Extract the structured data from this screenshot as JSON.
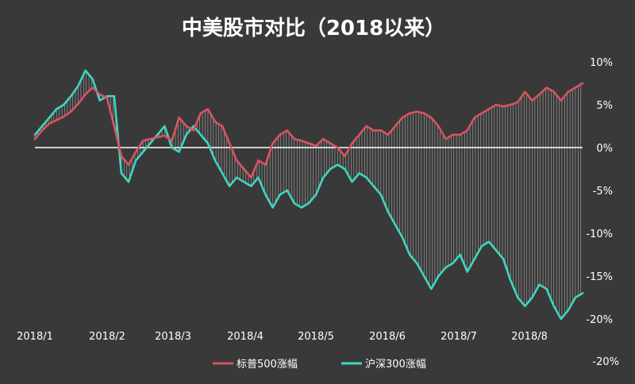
{
  "colors": {
    "background": "#3a393a",
    "sp500": "#d9545f",
    "csi300": "#3fd6c0",
    "gap_lines": "#cfcfcf",
    "axis": "#ffffff"
  },
  "chart_data": {
    "type": "line",
    "title": "中美股市对比（2018以来）",
    "x_ticks": [
      "2018/1",
      "2018/2",
      "2018/3",
      "2018/4",
      "2018/5",
      "2018/6",
      "2018/7",
      "2018/8"
    ],
    "y_ticks": [
      "10%",
      "5%",
      "0%",
      "-5%",
      "-10%",
      "-15%",
      "-20%"
    ],
    "y_tick_values": [
      10,
      5,
      0,
      -5,
      -10,
      -15,
      -20
    ],
    "ylim": [
      -20,
      10
    ],
    "xlim": [
      0,
      152
    ],
    "extra_label": "-20%",
    "legend_position": "bottom",
    "legend": [
      "标普500涨幅",
      "沪深300涨幅"
    ],
    "series": [
      {
        "name": "标普500涨幅",
        "color": "#d9545f",
        "x": [
          0,
          2,
          4,
          6,
          8,
          10,
          12,
          14,
          16,
          18,
          20,
          22,
          24,
          26,
          28,
          30,
          32,
          34,
          36,
          38,
          40,
          42,
          44,
          46,
          48,
          50,
          52,
          54,
          56,
          58,
          60,
          62,
          64,
          66,
          68,
          70,
          72,
          74,
          76,
          78,
          80,
          82,
          84,
          86,
          88,
          90,
          92,
          94,
          96,
          98,
          100,
          102,
          104,
          106,
          108,
          110,
          112,
          114,
          116,
          118,
          120,
          122,
          124,
          126,
          128,
          130,
          132,
          134,
          136,
          138,
          140,
          142,
          144,
          146,
          148,
          150,
          152
        ],
        "y": [
          1.0,
          2.0,
          2.8,
          3.2,
          3.6,
          4.2,
          5.1,
          6.2,
          7.0,
          6.2,
          5.8,
          2.5,
          -1.0,
          -2.0,
          -0.5,
          0.8,
          1.0,
          1.2,
          1.4,
          0.8,
          3.5,
          2.5,
          2.0,
          4.0,
          4.5,
          3.0,
          2.5,
          0.5,
          -1.5,
          -2.5,
          -3.5,
          -1.5,
          -2.0,
          0.5,
          1.5,
          2.0,
          1.0,
          0.8,
          0.5,
          0.2,
          1.0,
          0.5,
          0.0,
          -1.0,
          0.5,
          1.5,
          2.5,
          2.0,
          2.0,
          1.5,
          2.5,
          3.5,
          4.0,
          4.2,
          4.0,
          3.5,
          2.5,
          1.0,
          1.5,
          1.5,
          2.0,
          3.5,
          4.0,
          4.5,
          5.0,
          4.8,
          5.0,
          5.3,
          6.5,
          5.5,
          6.2,
          7.0,
          6.5,
          5.5,
          6.5,
          7.0,
          7.5
        ]
      },
      {
        "name": "沪深300涨幅",
        "color": "#3fd6c0",
        "x": [
          0,
          2,
          4,
          6,
          8,
          10,
          12,
          14,
          16,
          18,
          20,
          22,
          24,
          26,
          28,
          30,
          32,
          34,
          36,
          38,
          40,
          42,
          44,
          46,
          48,
          50,
          52,
          54,
          56,
          58,
          60,
          62,
          64,
          66,
          68,
          70,
          72,
          74,
          76,
          78,
          80,
          82,
          84,
          86,
          88,
          90,
          92,
          94,
          96,
          98,
          100,
          102,
          104,
          106,
          108,
          110,
          112,
          114,
          116,
          118,
          120,
          122,
          124,
          126,
          128,
          130,
          132,
          134,
          136,
          138,
          140,
          142,
          144,
          146,
          148,
          150,
          152
        ],
        "y": [
          1.5,
          2.5,
          3.5,
          4.5,
          5.0,
          6.0,
          7.2,
          9.0,
          8.0,
          5.5,
          6.0,
          6.0,
          -3.0,
          -4.0,
          -1.5,
          -0.5,
          0.5,
          1.5,
          2.5,
          0.0,
          -0.5,
          1.5,
          2.5,
          1.5,
          0.5,
          -1.5,
          -3.0,
          -4.5,
          -3.5,
          -4.0,
          -4.5,
          -3.5,
          -5.5,
          -7.0,
          -5.5,
          -5.0,
          -6.5,
          -7.0,
          -6.5,
          -5.5,
          -3.5,
          -2.5,
          -2.0,
          -2.5,
          -4.0,
          -3.0,
          -3.5,
          -4.5,
          -5.5,
          -7.5,
          -9.0,
          -10.5,
          -12.5,
          -13.5,
          -15.0,
          -16.5,
          -15.0,
          -14.0,
          -13.5,
          -12.5,
          -14.5,
          -13.0,
          -11.5,
          -11.0,
          -12.0,
          -13.0,
          -15.5,
          -17.5,
          -18.5,
          -17.5,
          -16.0,
          -16.5,
          -18.5,
          -20.0,
          -19.0,
          -17.5,
          -17.0
        ]
      }
    ]
  }
}
